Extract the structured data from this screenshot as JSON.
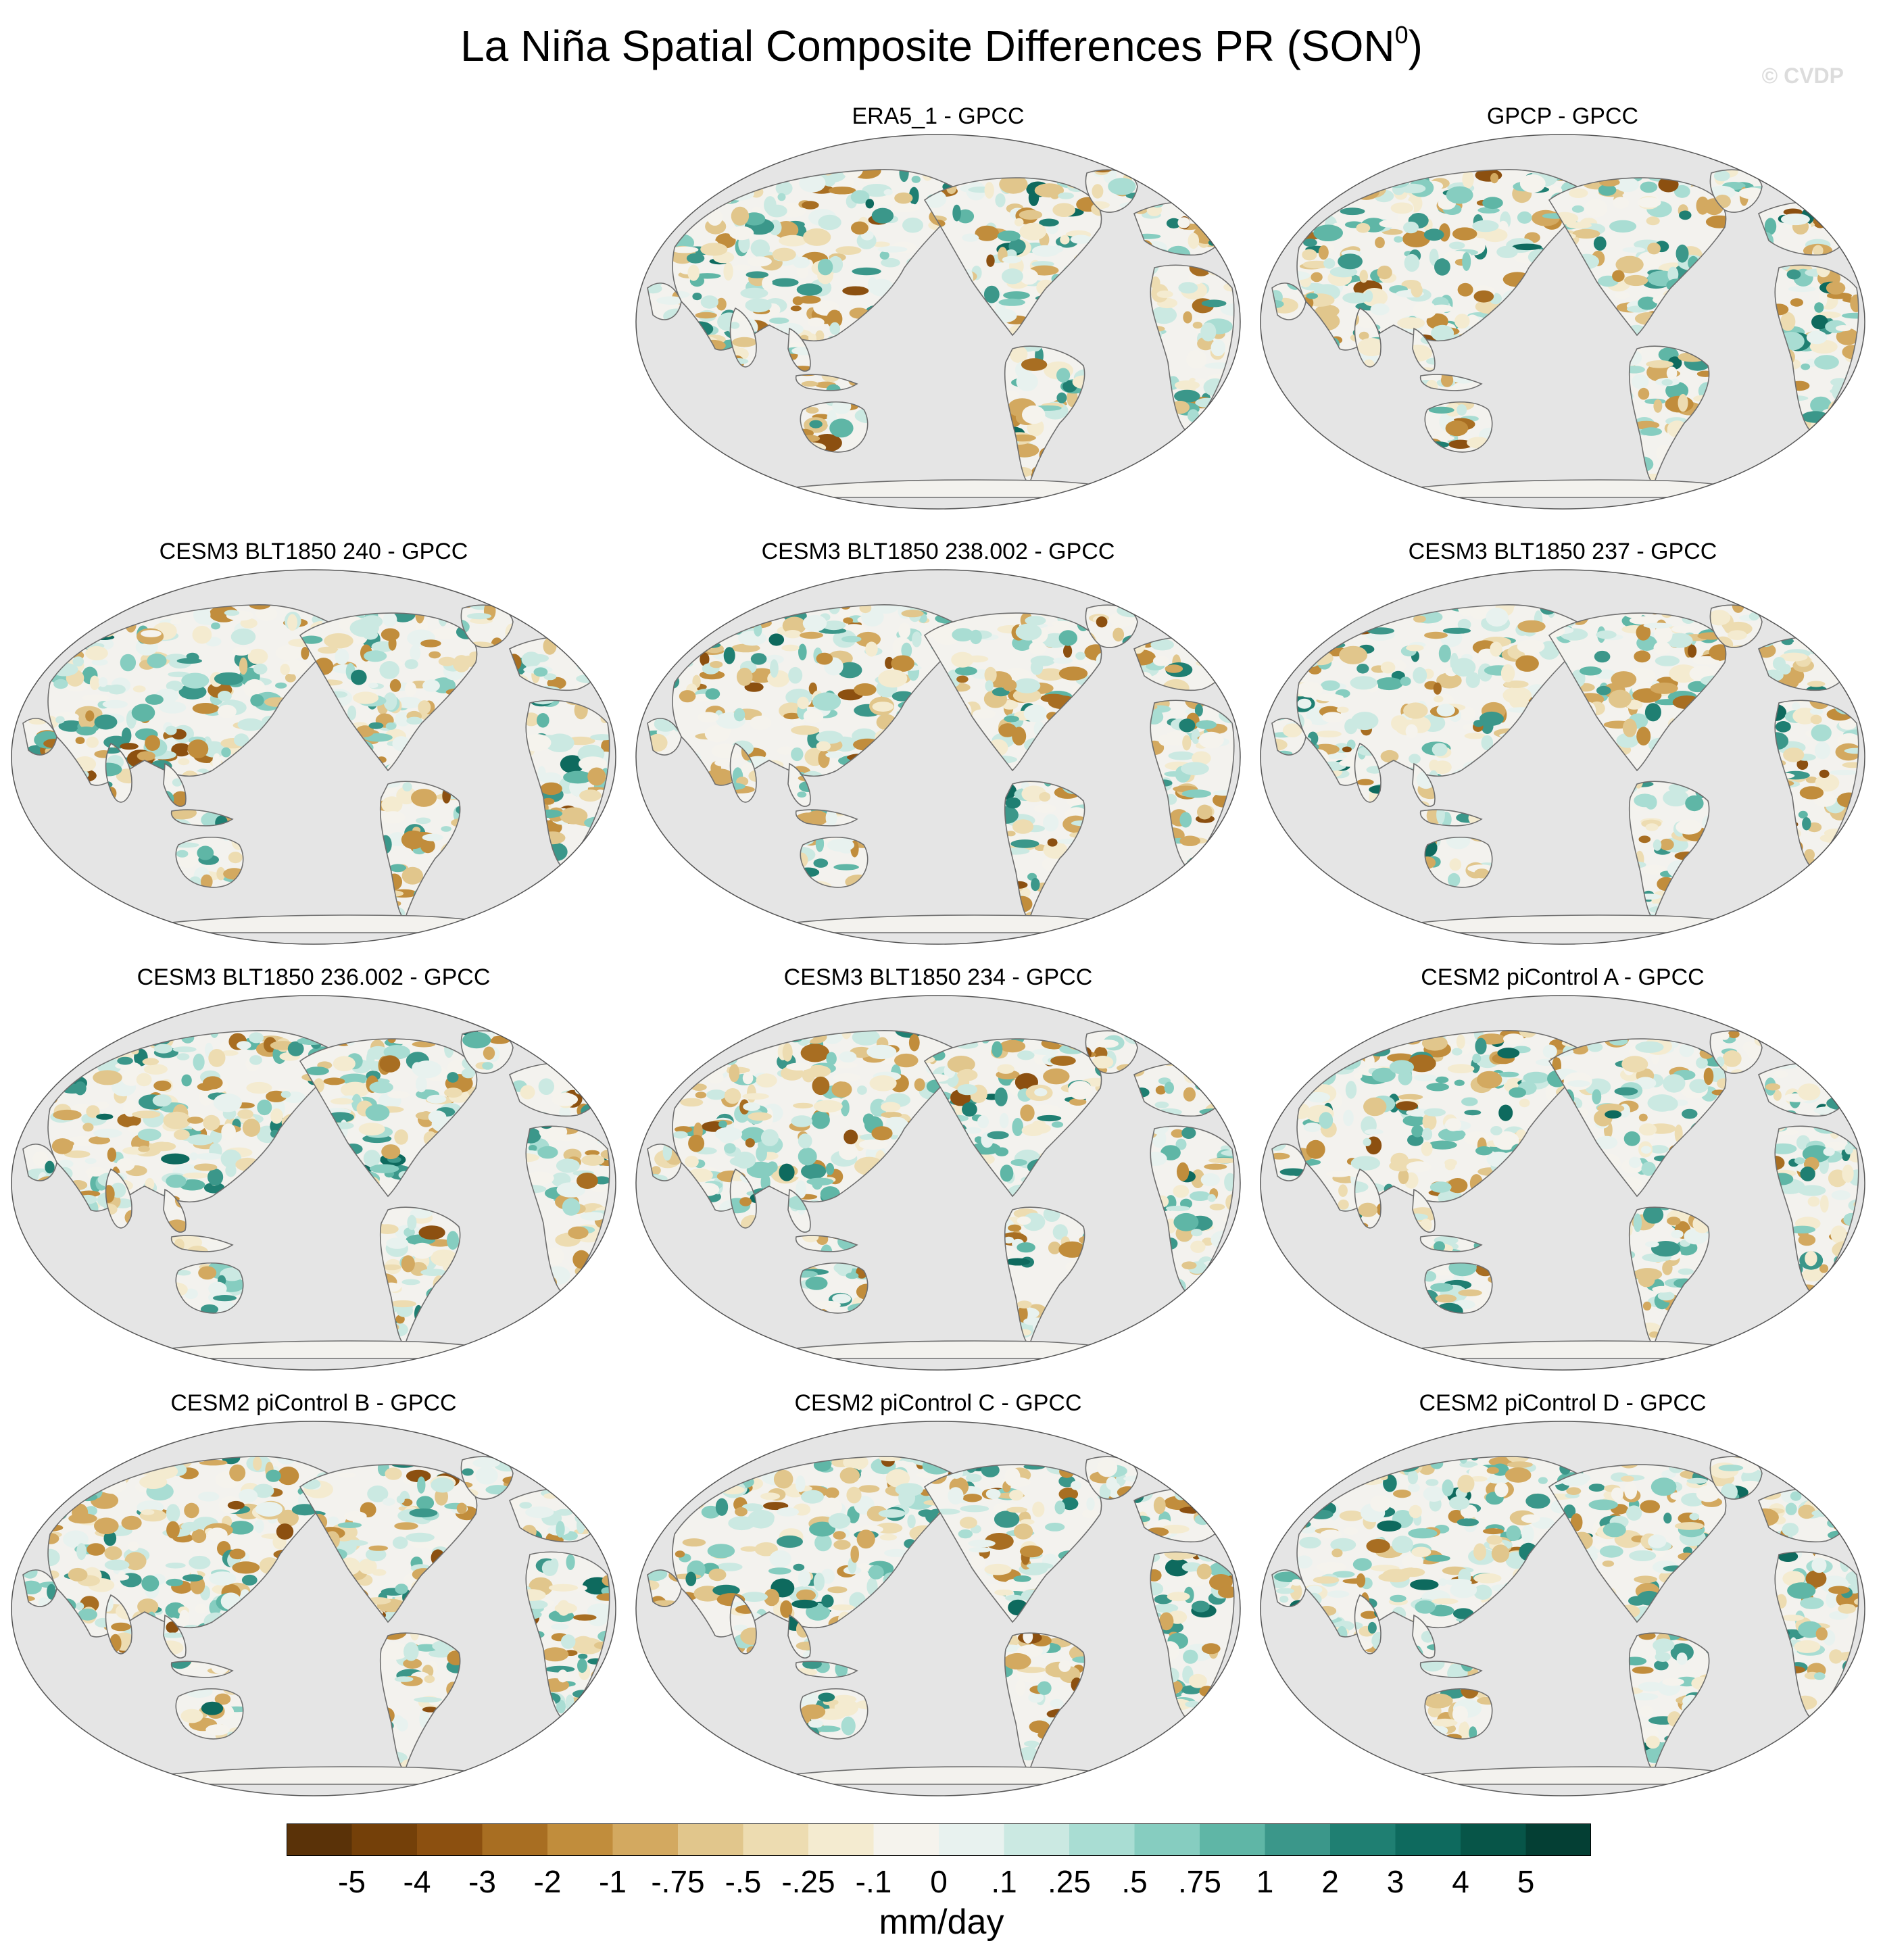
{
  "title": "La Niña Spatial Composite Differences PR (SON",
  "title_superscript": "0",
  "title_suffix": ")",
  "watermark": "© CVDP",
  "panels": [
    {
      "title": "ERA5_1 - GPCC",
      "col": 1,
      "row": 0
    },
    {
      "title": "GPCP - GPCC",
      "col": 2,
      "row": 0
    },
    {
      "title": "CESM3 BLT1850 240 - GPCC",
      "col": 0,
      "row": 1
    },
    {
      "title": "CESM3 BLT1850 238.002 - GPCC",
      "col": 1,
      "row": 1
    },
    {
      "title": "CESM3 BLT1850 237 - GPCC",
      "col": 2,
      "row": 1
    },
    {
      "title": "CESM3 BLT1850 236.002 - GPCC",
      "col": 0,
      "row": 2
    },
    {
      "title": "CESM3 BLT1850 234 - GPCC",
      "col": 1,
      "row": 2
    },
    {
      "title": "CESM2 piControl A - GPCC",
      "col": 2,
      "row": 2
    },
    {
      "title": "CESM2 piControl B - GPCC",
      "col": 0,
      "row": 3
    },
    {
      "title": "CESM2 piControl C - GPCC",
      "col": 1,
      "row": 3
    },
    {
      "title": "CESM2 piControl D - GPCC",
      "col": 2,
      "row": 3
    }
  ],
  "colorbar": {
    "labels": [
      "-5",
      "-4",
      "-3",
      "-2",
      "-1",
      "-.75",
      "-.5",
      "-.25",
      "-.1",
      "0",
      ".1",
      ".25",
      ".5",
      ".75",
      "1",
      "2",
      "3",
      "4",
      "5"
    ],
    "colors": [
      "#5a3208",
      "#744009",
      "#8c5010",
      "#a86e22",
      "#c18d3c",
      "#d3a960",
      "#e1c68c",
      "#eddcb1",
      "#f4ebd0",
      "#f5f3ed",
      "#e8f2ef",
      "#cbe9e2",
      "#a9ddd3",
      "#86cdc0",
      "#5fb6a6",
      "#3b978a",
      "#1f7f72",
      "#0e6a5e",
      "#075548",
      "#043f34"
    ],
    "units": "mm/day"
  },
  "map_colors": {
    "ocean": "#e5e5e5",
    "land": "#f3f2ee",
    "coast": "#6e6e6e",
    "border": "#555555"
  }
}
